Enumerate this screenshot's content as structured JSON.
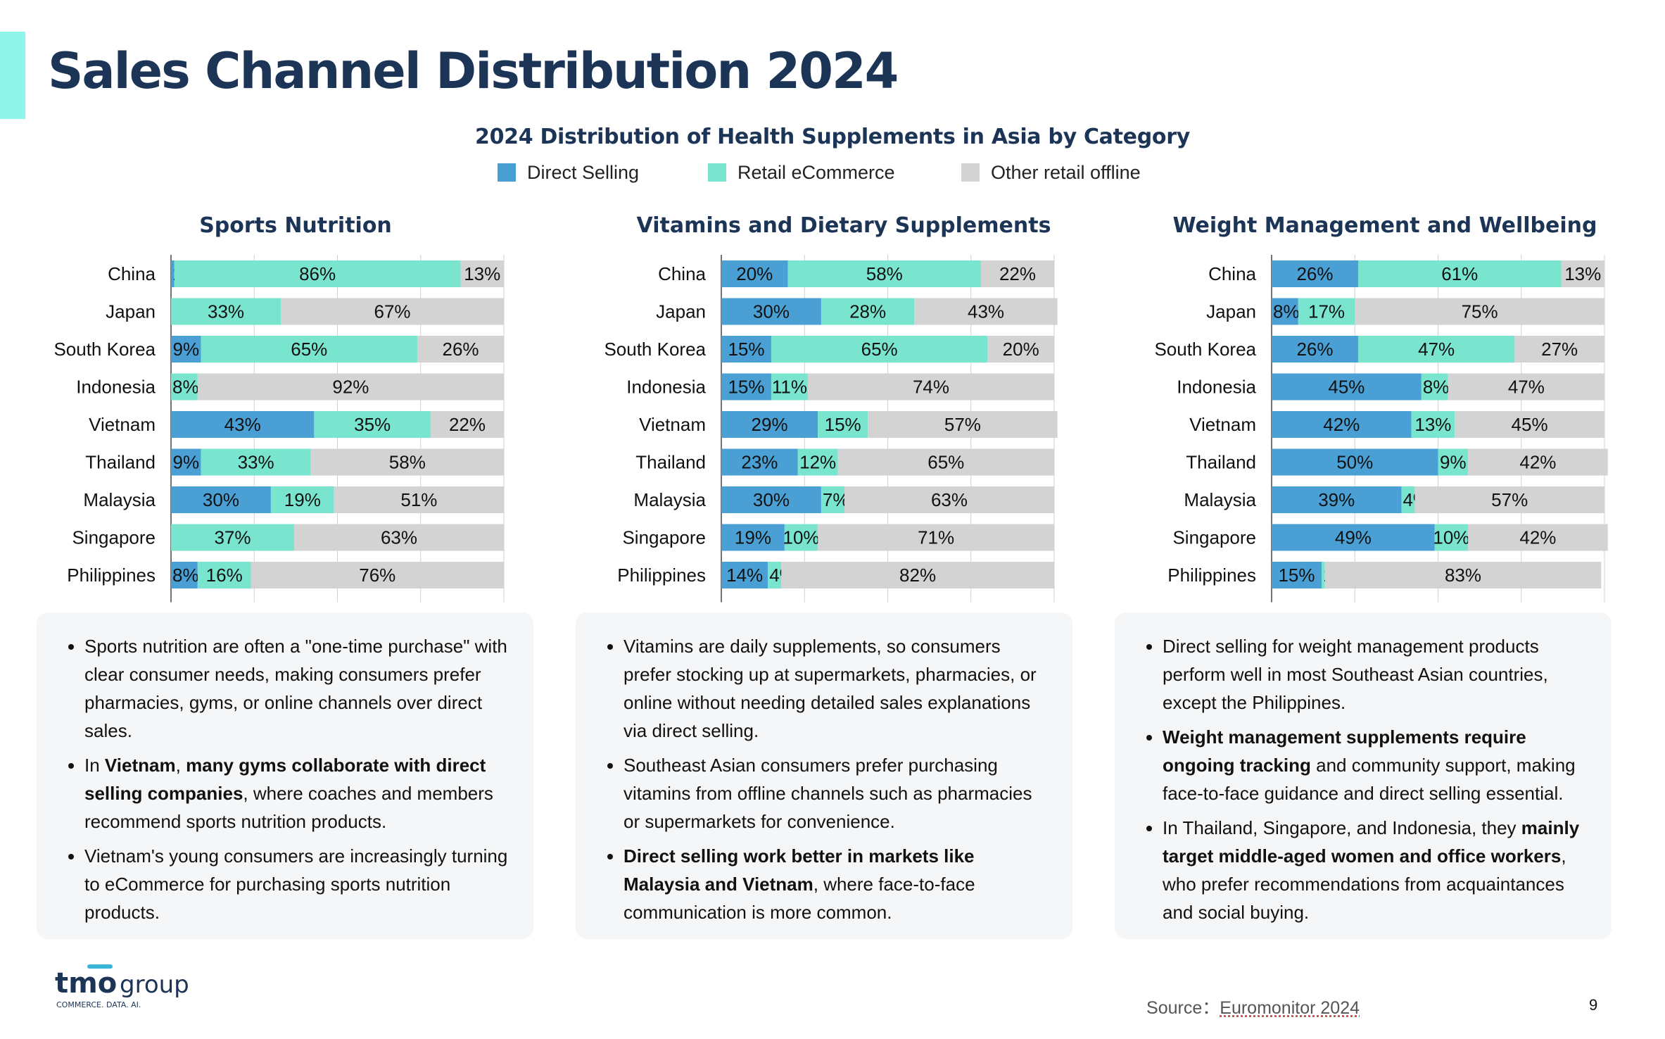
{
  "page": {
    "title": "Sales Channel Distribution 2024",
    "page_number": "9",
    "source_label": "Source：",
    "source_value": "Euromonitor 2024",
    "logo_word": "tmo",
    "logo_group": "group",
    "logo_tagline": "COMMERCE. DATA. AI."
  },
  "chart_data": {
    "title": "2024 Distribution of Health Supplements in Asia by Category",
    "type": "bar",
    "orientation": "horizontal",
    "stacked": true,
    "series_names": [
      "Direct Selling",
      "Retail eCommerce",
      "Other retail offline"
    ],
    "colors": [
      "#4aa0d5",
      "#7ae5cf",
      "#d3d3d3"
    ],
    "legend_position": "top-center",
    "xlim": [
      0,
      100
    ],
    "grid": true,
    "categories": [
      "China",
      "Japan",
      "South Korea",
      "Indonesia",
      "Vietnam",
      "Thailand",
      "Malaysia",
      "Singapore",
      "Philippines"
    ],
    "charts": [
      {
        "title": "Sports Nutrition",
        "series": [
          {
            "name": "Direct Selling",
            "values": [
              1,
              0,
              9,
              0,
              43,
              9,
              30,
              0,
              8
            ]
          },
          {
            "name": "Retail eCommerce",
            "values": [
              86,
              33,
              65,
              8,
              35,
              33,
              19,
              37,
              16
            ]
          },
          {
            "name": "Other retail offline",
            "values": [
              13,
              67,
              26,
              92,
              22,
              58,
              51,
              63,
              76
            ]
          }
        ]
      },
      {
        "title": "Vitamins and Dietary Supplements",
        "series": [
          {
            "name": "Direct Selling",
            "values": [
              20,
              30,
              15,
              15,
              29,
              23,
              30,
              19,
              14
            ]
          },
          {
            "name": "Retail eCommerce",
            "values": [
              58,
              28,
              65,
              11,
              15,
              12,
              7,
              10,
              4
            ]
          },
          {
            "name": "Other retail offline",
            "values": [
              22,
              43,
              20,
              74,
              57,
              65,
              63,
              71,
              82
            ]
          }
        ]
      },
      {
        "title": "Weight Management and Wellbeing",
        "series": [
          {
            "name": "Direct Selling",
            "values": [
              26,
              8,
              26,
              45,
              42,
              50,
              39,
              49,
              15
            ]
          },
          {
            "name": "Retail eCommerce",
            "values": [
              61,
              17,
              47,
              8,
              13,
              9,
              4,
              10,
              1
            ]
          },
          {
            "name": "Other retail offline",
            "values": [
              13,
              75,
              27,
              47,
              45,
              42,
              57,
              42,
              83
            ]
          }
        ]
      }
    ]
  },
  "panels": [
    {
      "items": [
        {
          "html": "Sports nutrition are often a \"one-time purchase\" with clear consumer needs, making consumers prefer pharmacies, gyms, or online channels over direct sales."
        },
        {
          "html": "In <b>Vietnam</b>, <b>many gyms collaborate with direct selling companies</b>, where coaches and members recommend sports nutrition products."
        },
        {
          "html": "Vietnam's young consumers are increasingly turning to eCommerce for purchasing sports nutrition products."
        }
      ]
    },
    {
      "items": [
        {
          "html": "Vitamins are daily supplements, so consumers prefer stocking up at supermarkets, pharmacies, or online without needing detailed sales explanations via direct selling."
        },
        {
          "html": "Southeast Asian consumers prefer purchasing vitamins from offline channels such as pharmacies or supermarkets for convenience."
        },
        {
          "html": "<b>Direct selling work better in markets like Malaysia and Vietnam</b>, where face-to-face communication is more common."
        }
      ]
    },
    {
      "items": [
        {
          "html": "Direct selling for weight management products perform well in most Southeast Asian countries, except the Philippines."
        },
        {
          "html": "<b>Weight management supplements require ongoing tracking</b> and community support, making face-to-face guidance and direct selling essential."
        },
        {
          "html": "In Thailand, Singapore, and Indonesia, they <b>mainly target middle-aged women and office workers</b>, who prefer recommendations from acquaintances and social buying."
        }
      ]
    }
  ]
}
